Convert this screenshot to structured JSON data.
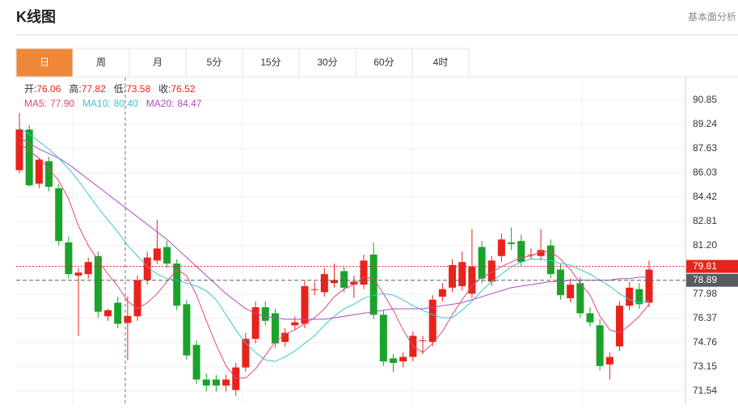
{
  "header": {
    "title": "K线图",
    "link": "基本面分析"
  },
  "tabs": [
    "日",
    "周",
    "月",
    "5分",
    "15分",
    "30分",
    "60分",
    "4时"
  ],
  "chart_data": {
    "type": "candlestick",
    "info": [
      {
        "label": "开:",
        "value": 76.06
      },
      {
        "label": "高:",
        "value": 77.82
      },
      {
        "label": "低:",
        "value": 73.58
      },
      {
        "label": "收:",
        "value": 76.52
      }
    ],
    "open": [
      86.2,
      88.9,
      85.3,
      86.8,
      85.0,
      81.4,
      79.2,
      79.3,
      80.5,
      76.5,
      77.4,
      76.06,
      76.5,
      78.9,
      80.2,
      81.1,
      80.0,
      77.3,
      74.6,
      72.3,
      72.3,
      71.9,
      71.6,
      73.1,
      75.0,
      77.1,
      76.7,
      74.8,
      75.9,
      76.0,
      78.3,
      78.1,
      78.7,
      79.5,
      78.6,
      78.6,
      80.6,
      76.6,
      73.7,
      73.5,
      73.8,
      74.9,
      74.8,
      77.8,
      78.4,
      78.5,
      78.0,
      81.1,
      78.8,
      80.5,
      81.4,
      81.5,
      80.6,
      80.5,
      81.2,
      79.6,
      77.7,
      78.7,
      76.7,
      75.9,
      73.3,
      74.5,
      77.2,
      78.3,
      77.4
    ],
    "high": [
      90.0,
      89.2,
      87.0,
      87.1,
      85.3,
      81.8,
      79.7,
      80.4,
      80.8,
      77.0,
      77.8,
      77.82,
      79.2,
      80.8,
      82.9,
      81.5,
      80.3,
      77.6,
      74.9,
      72.7,
      72.6,
      72.6,
      73.4,
      75.4,
      77.5,
      77.5,
      77.0,
      75.7,
      76.5,
      78.9,
      78.8,
      79.7,
      80.0,
      79.8,
      79.2,
      80.6,
      81.4,
      76.9,
      74.0,
      74.1,
      75.5,
      75.2,
      77.9,
      78.7,
      80.3,
      80.8,
      82.3,
      81.5,
      80.5,
      82.0,
      82.4,
      81.9,
      81.0,
      82.3,
      81.6,
      80.0,
      79.0,
      79.1,
      77.1,
      76.3,
      74.1,
      77.5,
      78.8,
      78.7,
      80.2
    ],
    "low": [
      86.0,
      85.1,
      85.0,
      84.8,
      81.2,
      79.0,
      75.2,
      79.0,
      76.4,
      76.2,
      75.7,
      73.58,
      76.2,
      78.6,
      80.0,
      79.7,
      76.9,
      73.6,
      72.0,
      71.5,
      71.5,
      71.5,
      71.2,
      72.8,
      74.7,
      75.9,
      74.4,
      74.5,
      75.6,
      75.7,
      77.9,
      77.8,
      78.4,
      78.1,
      77.7,
      78.3,
      76.3,
      73.2,
      72.8,
      73.1,
      73.5,
      74.0,
      74.5,
      77.5,
      78.1,
      78.2,
      77.7,
      78.7,
      78.5,
      80.1,
      80.9,
      79.8,
      80.3,
      80.2,
      79.0,
      77.6,
      77.4,
      76.4,
      75.8,
      72.9,
      72.3,
      74.2,
      76.9,
      77.0,
      77.1
    ],
    "close": [
      88.9,
      85.2,
      86.9,
      85.1,
      81.5,
      79.3,
      79.4,
      80.1,
      76.8,
      76.9,
      76.0,
      76.52,
      78.9,
      80.4,
      81.0,
      80.0,
      77.2,
      73.9,
      72.3,
      71.9,
      71.9,
      72.3,
      73.1,
      75.0,
      77.1,
      76.2,
      74.7,
      75.4,
      76.1,
      78.5,
      78.3,
      79.3,
      78.9,
      78.4,
      78.8,
      80.2,
      76.6,
      73.5,
      73.4,
      73.8,
      75.2,
      74.9,
      77.6,
      78.3,
      79.9,
      80.1,
      79.8,
      79.0,
      80.2,
      81.6,
      81.3,
      80.1,
      80.6,
      80.9,
      79.3,
      77.9,
      78.6,
      76.7,
      76.1,
      73.2,
      73.8,
      77.2,
      78.4,
      77.3,
      79.6
    ],
    "up_color": "#e8231b",
    "down_color": "#1aa32a",
    "series": [
      {
        "name": "MA5:",
        "color": "#e8457a",
        "current": {
          "value": 77.9,
          "label": "77.90"
        },
        "values": [
          88.0,
          87.5,
          87.0,
          86.3,
          85.5,
          84.3,
          82.5,
          81.2,
          80.2,
          79.3,
          78.5,
          77.5,
          77.0,
          77.4,
          78.0,
          78.8,
          79.6,
          79.2,
          77.9,
          76.2,
          74.6,
          73.2,
          72.4,
          72.4,
          73.0,
          73.9,
          74.8,
          75.3,
          75.6,
          76.0,
          76.4,
          77.0,
          77.8,
          78.3,
          78.6,
          79.1,
          79.0,
          78.0,
          76.9,
          75.6,
          74.5,
          74.1,
          74.7,
          75.5,
          76.6,
          77.6,
          78.5,
          79.1,
          79.4,
          79.8,
          80.1,
          80.4,
          80.5,
          80.8,
          80.8,
          80.3,
          79.6,
          78.7,
          77.9,
          76.5,
          75.6,
          75.4,
          75.9,
          76.5,
          77.3
        ]
      },
      {
        "name": "MA10:",
        "color": "#3cc4d4",
        "current": {
          "value": 80.4,
          "label": "80.40"
        },
        "values": [
          89.0,
          88.6,
          88.1,
          87.6,
          87.0,
          86.3,
          85.5,
          84.6,
          83.7,
          82.9,
          82.1,
          81.2,
          80.5,
          79.8,
          79.3,
          79.0,
          78.9,
          78.7,
          78.5,
          78.2,
          77.6,
          76.6,
          75.6,
          74.7,
          74.1,
          73.6,
          73.5,
          73.8,
          74.2,
          74.7,
          75.2,
          75.9,
          76.5,
          77.0,
          77.3,
          77.7,
          77.9,
          78.0,
          77.9,
          77.6,
          77.2,
          76.9,
          76.6,
          76.4,
          76.4,
          76.9,
          77.5,
          78.2,
          78.8,
          79.3,
          79.8,
          80.1,
          80.3,
          80.3,
          80.2,
          80.0,
          79.9,
          79.6,
          79.3,
          78.9,
          78.5,
          78.0,
          77.6,
          77.4,
          77.5
        ]
      },
      {
        "name": "MA20:",
        "color": "#b04cc0",
        "current": 84.47,
        "values": [
          88.4,
          88.0,
          87.6,
          87.3,
          87.0,
          86.6,
          86.1,
          85.6,
          85.1,
          84.6,
          84.1,
          83.6,
          83.1,
          82.6,
          82.1,
          81.6,
          81.0,
          80.4,
          79.8,
          79.2,
          78.6,
          78.0,
          77.5,
          77.0,
          76.7,
          76.5,
          76.4,
          76.3,
          76.3,
          76.3,
          76.3,
          76.3,
          76.4,
          76.5,
          76.6,
          76.7,
          76.8,
          76.9,
          77.0,
          77.0,
          77.0,
          77.0,
          77.1,
          77.2,
          77.3,
          77.4,
          77.6,
          77.8,
          78.0,
          78.2,
          78.4,
          78.5,
          78.6,
          78.7,
          78.8,
          78.8,
          78.9,
          78.9,
          78.9,
          78.9,
          78.9,
          79.0,
          79.0,
          79.1,
          79.1
        ]
      }
    ],
    "ylim": [
      70.61,
      92.35
    ],
    "yticks": [
      71.54,
      73.15,
      74.76,
      76.37,
      77.98,
      {
        "value": 81.2,
        "label": "81.20"
      },
      82.81,
      84.42,
      86.03,
      87.63,
      89.24,
      90.85
    ],
    "markers": [
      {
        "value": 79.81,
        "color": "#e8231b"
      },
      {
        "value": 78.89,
        "color": "#555b61"
      }
    ],
    "grid": true
  }
}
